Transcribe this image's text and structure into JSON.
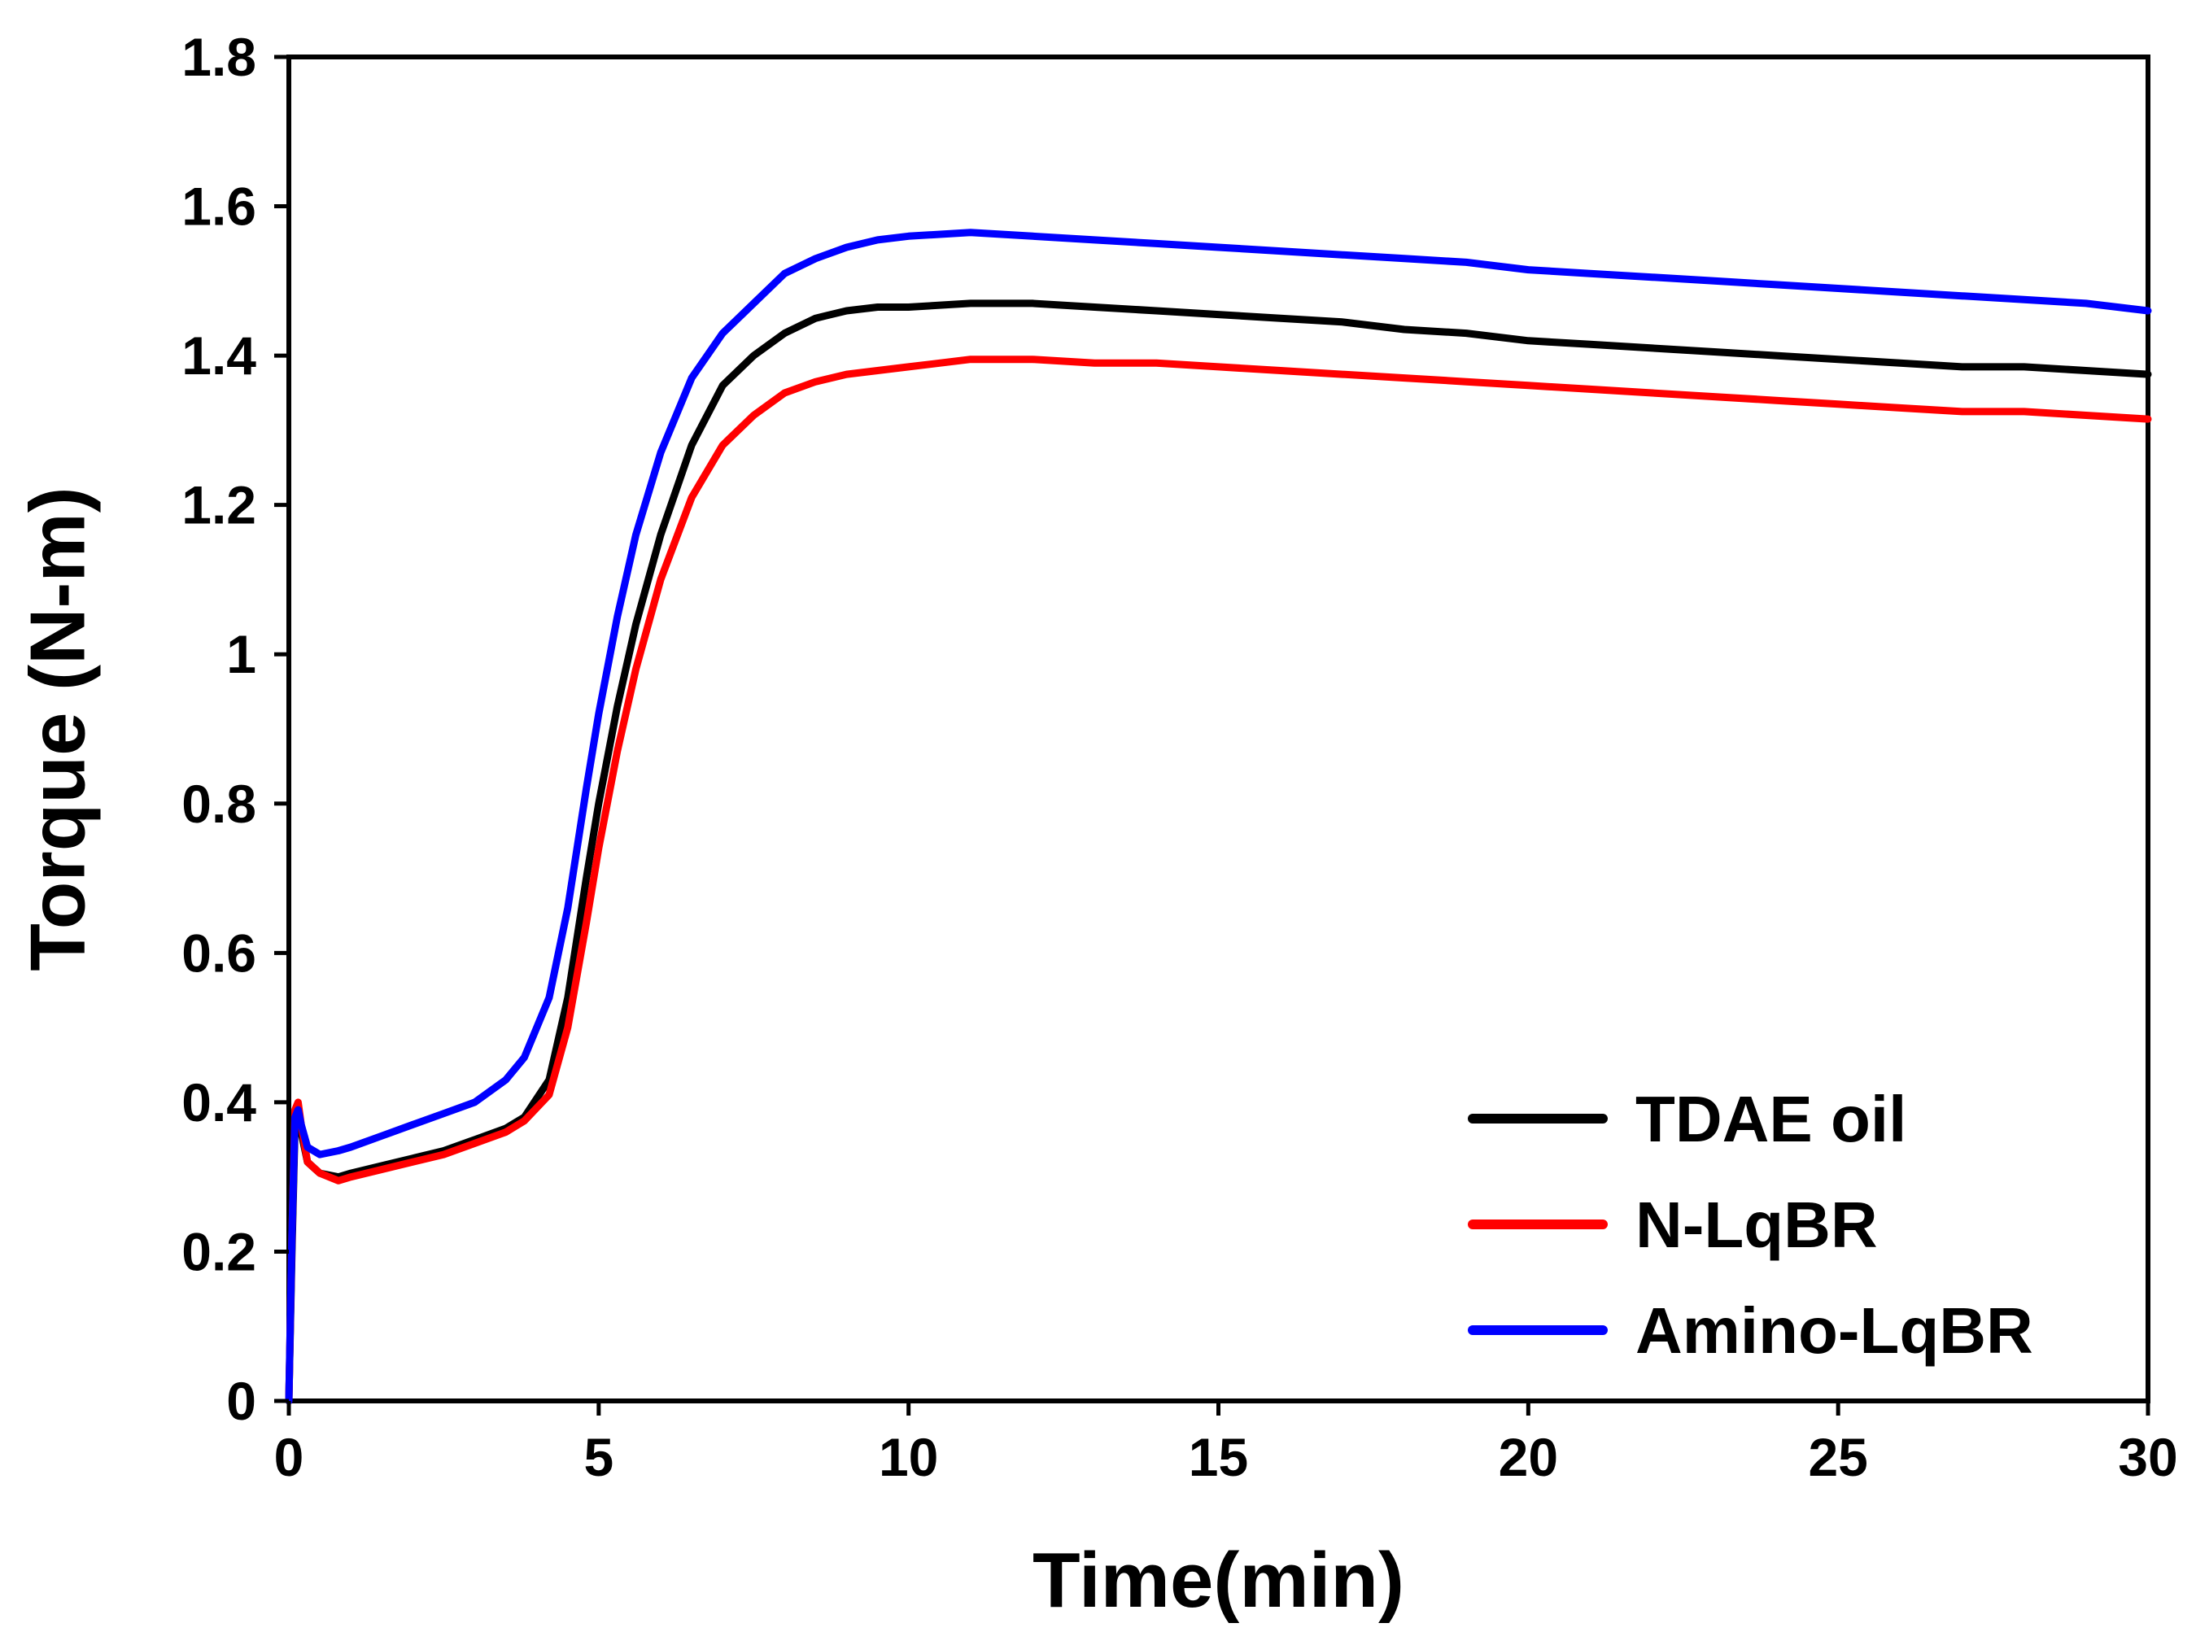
{
  "chart_data": {
    "type": "line",
    "title": "",
    "xlabel": "Time(min)",
    "ylabel": "Torque (N-m)",
    "xlim": [
      0,
      30
    ],
    "ylim": [
      0,
      1.8
    ],
    "x_ticks": [
      0,
      5,
      10,
      15,
      20,
      25,
      30
    ],
    "x_tick_labels": [
      "0",
      "5",
      "10",
      "15",
      "20",
      "25",
      "30"
    ],
    "y_ticks": [
      0,
      0.2,
      0.4,
      0.6,
      0.8,
      1.0,
      1.2,
      1.4,
      1.6,
      1.8
    ],
    "y_tick_labels": [
      "0",
      "0.2",
      "0.4",
      "0.6",
      "0.8",
      "1",
      "1.2",
      "1.4",
      "1.6",
      "1.8"
    ],
    "grid": false,
    "legend_position": "bottom-right",
    "series": [
      {
        "name": "TDAE oil",
        "color": "#000000",
        "x": [
          0,
          0.05,
          0.1,
          0.15,
          0.2,
          0.3,
          0.5,
          0.8,
          1,
          1.5,
          2,
          2.5,
          3,
          3.5,
          3.8,
          4.2,
          4.5,
          4.8,
          5,
          5.3,
          5.6,
          6,
          6.5,
          7,
          7.5,
          8,
          8.5,
          9,
          9.5,
          10,
          11,
          12,
          13,
          14,
          15,
          16,
          17,
          18,
          19,
          20,
          21,
          22,
          23,
          24,
          25,
          26,
          27,
          28,
          29,
          30
        ],
        "values": [
          0,
          0.2,
          0.37,
          0.38,
          0.36,
          0.32,
          0.305,
          0.3,
          0.305,
          0.315,
          0.325,
          0.335,
          0.35,
          0.365,
          0.38,
          0.43,
          0.54,
          0.7,
          0.8,
          0.93,
          1.04,
          1.16,
          1.28,
          1.36,
          1.4,
          1.43,
          1.45,
          1.46,
          1.465,
          1.465,
          1.47,
          1.47,
          1.465,
          1.46,
          1.455,
          1.45,
          1.445,
          1.435,
          1.43,
          1.42,
          1.415,
          1.41,
          1.405,
          1.4,
          1.395,
          1.39,
          1.385,
          1.385,
          1.38,
          1.375
        ]
      },
      {
        "name": "N-LqBR",
        "color": "#ff0000",
        "x": [
          0,
          0.05,
          0.1,
          0.15,
          0.2,
          0.3,
          0.5,
          0.8,
          1,
          1.5,
          2,
          2.5,
          3,
          3.5,
          3.8,
          4.2,
          4.5,
          4.8,
          5,
          5.3,
          5.6,
          6,
          6.5,
          7,
          7.5,
          8,
          8.5,
          9,
          9.5,
          10,
          11,
          12,
          13,
          14,
          15,
          16,
          17,
          18,
          19,
          20,
          21,
          22,
          23,
          24,
          25,
          26,
          27,
          28,
          29,
          30
        ],
        "values": [
          0,
          0.22,
          0.39,
          0.4,
          0.37,
          0.32,
          0.305,
          0.295,
          0.3,
          0.31,
          0.32,
          0.33,
          0.345,
          0.36,
          0.375,
          0.41,
          0.5,
          0.64,
          0.74,
          0.87,
          0.98,
          1.1,
          1.21,
          1.28,
          1.32,
          1.35,
          1.365,
          1.375,
          1.38,
          1.385,
          1.395,
          1.395,
          1.39,
          1.39,
          1.385,
          1.38,
          1.375,
          1.37,
          1.365,
          1.36,
          1.355,
          1.35,
          1.345,
          1.34,
          1.335,
          1.33,
          1.325,
          1.325,
          1.32,
          1.315
        ]
      },
      {
        "name": "Amino-LqBR",
        "color": "#0000ff",
        "x": [
          0,
          0.05,
          0.1,
          0.15,
          0.2,
          0.3,
          0.5,
          0.8,
          1,
          1.5,
          2,
          2.5,
          3,
          3.5,
          3.8,
          4.2,
          4.5,
          4.8,
          5,
          5.3,
          5.6,
          6,
          6.5,
          7,
          7.5,
          8,
          8.5,
          9,
          9.5,
          10,
          11,
          12,
          13,
          14,
          15,
          16,
          17,
          18,
          19,
          20,
          21,
          22,
          23,
          24,
          25,
          26,
          27,
          28,
          29,
          30
        ],
        "values": [
          0,
          0.22,
          0.38,
          0.39,
          0.37,
          0.34,
          0.33,
          0.335,
          0.34,
          0.355,
          0.37,
          0.385,
          0.4,
          0.43,
          0.46,
          0.54,
          0.66,
          0.82,
          0.92,
          1.05,
          1.16,
          1.27,
          1.37,
          1.43,
          1.47,
          1.51,
          1.53,
          1.545,
          1.555,
          1.56,
          1.565,
          1.56,
          1.555,
          1.55,
          1.545,
          1.54,
          1.535,
          1.53,
          1.525,
          1.515,
          1.51,
          1.505,
          1.5,
          1.495,
          1.49,
          1.485,
          1.48,
          1.475,
          1.47,
          1.46
        ]
      }
    ]
  }
}
